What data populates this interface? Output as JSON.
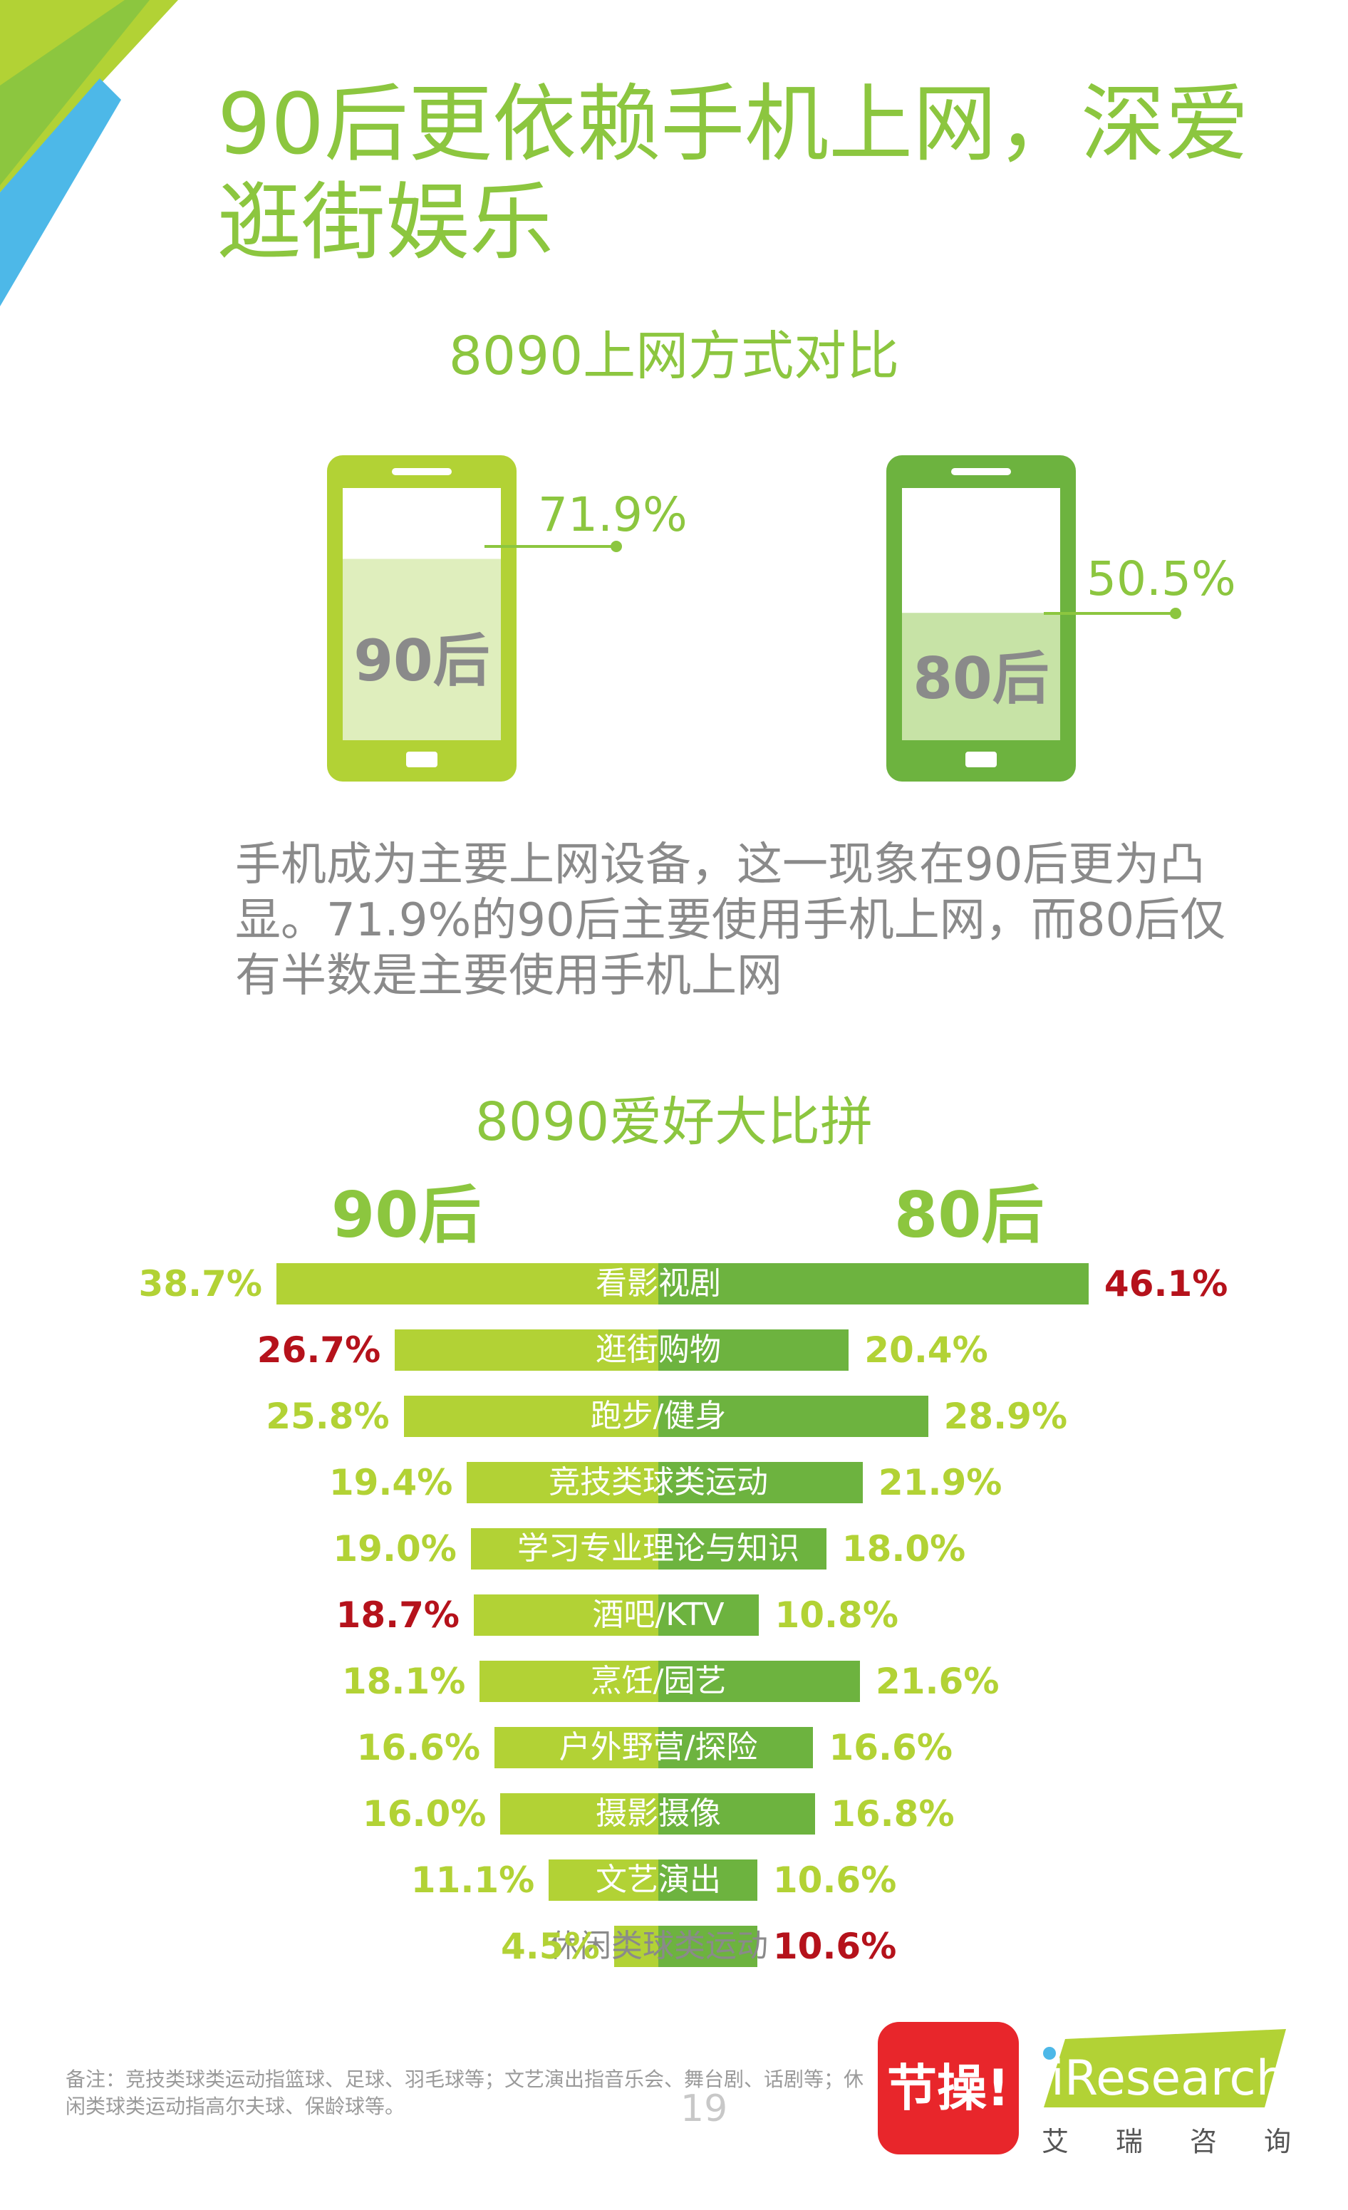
{
  "page": {
    "title": "90后更依赖手机上网，深爱逛街娱乐",
    "colors": {
      "green": "#8cc63f",
      "light_green": "#b2d235",
      "dark_green": "#6db33f",
      "red": "#b5121b",
      "blue": "#4db8e8"
    }
  },
  "section1": {
    "title": "8090上网方式对比",
    "phones": [
      {
        "label": "90后",
        "percent_text": "71.9%",
        "value": 71.9
      },
      {
        "label": "80后",
        "percent_text": "50.5%",
        "value": 50.5
      }
    ],
    "description": "手机成为主要上网设备，这一现象在90后更为凸显。71.9%的90后主要使用手机上网，而80后仅有半数是主要使用手机上网"
  },
  "section2": {
    "title": "8090爱好大比拼",
    "left_head": "90后",
    "right_head": "80后"
  },
  "chart_data": [
    {
      "type": "bar",
      "title": "8090上网方式对比",
      "categories": [
        "90后",
        "80后"
      ],
      "values": [
        71.9,
        50.5
      ],
      "ylim": [
        0,
        100
      ]
    },
    {
      "type": "bar",
      "orientation": "horizontal-butterfly",
      "title": "8090爱好大比拼",
      "categories": [
        "看影视剧",
        "逛街购物",
        "跑步/健身",
        "竞技类球类运动",
        "学习专业理论与知识",
        "酒吧/KTV",
        "烹饪/园艺",
        "户外野营/探险",
        "摄影摄像",
        "文艺演出",
        "休闲类球类运动"
      ],
      "series": [
        {
          "name": "90后",
          "values": [
            38.7,
            26.7,
            25.8,
            19.4,
            19.0,
            18.7,
            18.1,
            16.6,
            16.0,
            11.1,
            4.5
          ],
          "labels": [
            "38.7%",
            "26.7%",
            "25.8%",
            "19.4%",
            "19.0%",
            "18.7%",
            "18.1%",
            "16.6%",
            "16.0%",
            "11.1%",
            "4.5%"
          ],
          "highlight": [
            false,
            true,
            false,
            false,
            false,
            true,
            false,
            false,
            false,
            false,
            false
          ]
        },
        {
          "name": "80后",
          "values": [
            46.1,
            20.4,
            28.9,
            21.9,
            18.0,
            10.8,
            21.6,
            16.6,
            16.8,
            10.6,
            10.6
          ],
          "labels": [
            "46.1%",
            "20.4%",
            "28.9%",
            "21.9%",
            "18.0%",
            "10.8%",
            "21.6%",
            "16.6%",
            "16.8%",
            "10.6%",
            "10.6%"
          ],
          "highlight": [
            true,
            false,
            false,
            false,
            false,
            false,
            false,
            false,
            false,
            false,
            true
          ]
        }
      ]
    }
  ],
  "footer": {
    "note": "备注：竞技类球类运动指篮球、足球、羽毛球等；文艺演出指音乐会、舞台剧、话剧等；休闲类球类运动指高尔夫球、保龄球等。",
    "page_number": "19",
    "app_logo_text": "节操!",
    "brand": "iResearch",
    "brand_sub": "艾瑞咨询"
  }
}
